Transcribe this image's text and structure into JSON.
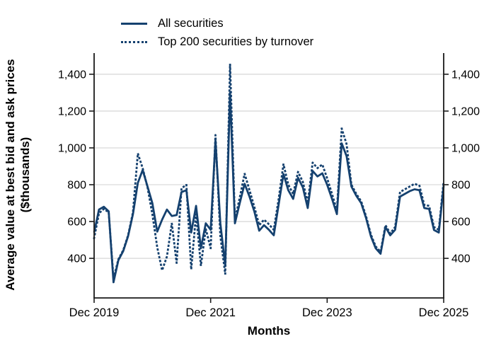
{
  "chart_data": {
    "type": "line",
    "title": "",
    "xlabel": "Months",
    "ylabel": "Average value at best bid and ask prices ($thousands)",
    "x_start": "Dec 2019",
    "x_end": "Dec 2025",
    "frequency": "monthly",
    "x_tick_labels": [
      "Dec 2019",
      "Dec 2021",
      "Dec 2023",
      "Dec 2025"
    ],
    "x_tick_month_indices": [
      0,
      24,
      48,
      72
    ],
    "y_ticks": [
      400,
      600,
      800,
      1000,
      1200,
      1400
    ],
    "y_tick_labels": [
      "400",
      "600",
      "800",
      "1,000",
      "1,200",
      "1,400"
    ],
    "y_axis_sides": [
      "left",
      "right"
    ],
    "ylim": [
      185,
      1515
    ],
    "grid": "horizontal",
    "legend_position": "top-left",
    "line_color": "#15416f",
    "grid_color": "#d9d9d9",
    "axis_color": "#1a1a1a",
    "series": [
      {
        "name": "All securities",
        "style": "solid",
        "values": [
          540,
          665,
          680,
          655,
          270,
          390,
          440,
          520,
          640,
          810,
          880,
          790,
          700,
          545,
          610,
          665,
          630,
          635,
          760,
          770,
          540,
          685,
          455,
          590,
          555,
          1040,
          590,
          360,
          1300,
          590,
          700,
          805,
          735,
          655,
          550,
          580,
          555,
          525,
          690,
          858,
          770,
          723,
          838,
          785,
          673,
          875,
          845,
          862,
          800,
          723,
          640,
          1025,
          955,
          790,
          740,
          700,
          620,
          520,
          455,
          425,
          570,
          525,
          555,
          735,
          750,
          765,
          775,
          770,
          673,
          668,
          554,
          540,
          795
        ]
      },
      {
        "name": "Top 200 securities by turnover",
        "style": "dotted",
        "values": [
          510,
          645,
          668,
          650,
          290,
          395,
          445,
          525,
          650,
          970,
          890,
          785,
          640,
          460,
          335,
          410,
          590,
          375,
          780,
          800,
          340,
          640,
          360,
          560,
          455,
          1070,
          520,
          315,
          1455,
          610,
          730,
          860,
          770,
          680,
          580,
          610,
          585,
          555,
          720,
          912,
          800,
          750,
          870,
          815,
          700,
          920,
          890,
          910,
          835,
          750,
          660,
          1105,
          1020,
          800,
          750,
          710,
          630,
          530,
          465,
          435,
          580,
          535,
          570,
          760,
          775,
          790,
          805,
          795,
          690,
          685,
          570,
          555,
          820
        ]
      }
    ]
  }
}
